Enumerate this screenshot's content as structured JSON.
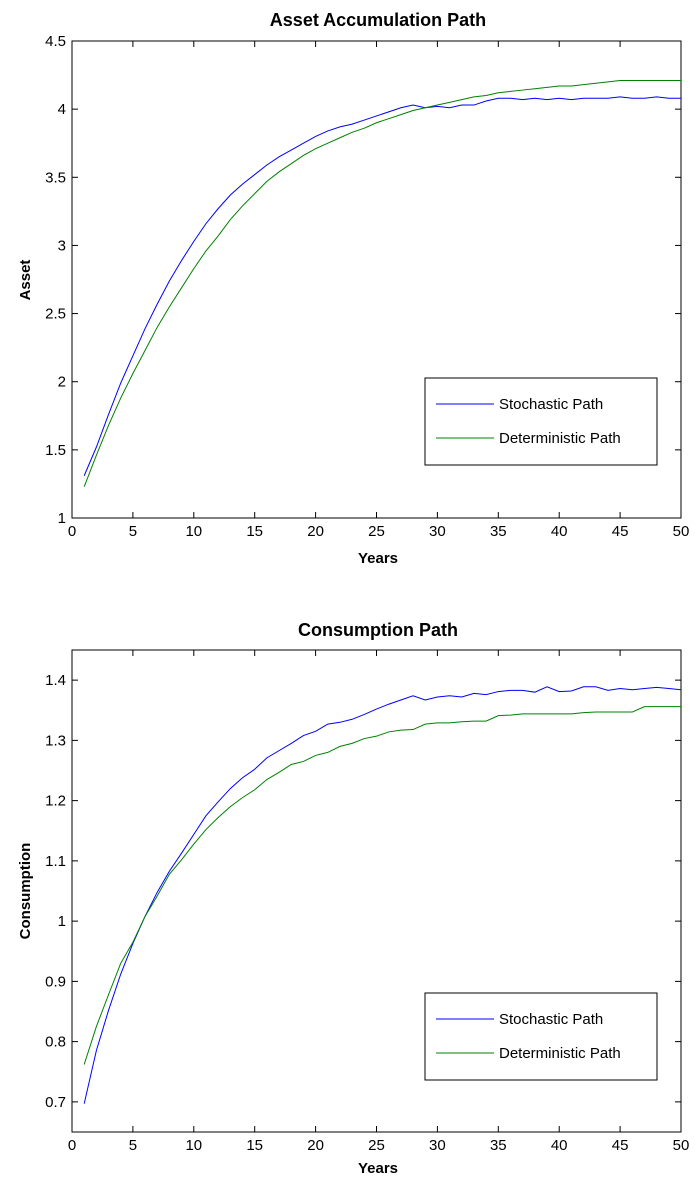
{
  "chart_data": [
    {
      "type": "line",
      "title": "Asset Accumulation Path",
      "xlabel": "Years",
      "ylabel": "Asset",
      "xlim": [
        0,
        50
      ],
      "ylim": [
        1,
        4.5
      ],
      "xticks": [
        "0",
        "5",
        "10",
        "15",
        "20",
        "25",
        "30",
        "35",
        "40",
        "45",
        "50"
      ],
      "yticks": [
        "1",
        "1.5",
        "2",
        "2.5",
        "3",
        "3.5",
        "4",
        "4.5"
      ],
      "grid": false,
      "legend_position": "lower-right",
      "x": [
        1,
        2,
        3,
        4,
        5,
        6,
        7,
        8,
        9,
        10,
        11,
        12,
        13,
        14,
        15,
        16,
        17,
        18,
        19,
        20,
        21,
        22,
        23,
        24,
        25,
        26,
        27,
        28,
        29,
        30,
        31,
        32,
        33,
        34,
        35,
        36,
        37,
        38,
        39,
        40,
        41,
        42,
        43,
        44,
        45,
        46,
        47,
        48,
        49,
        50
      ],
      "series": [
        {
          "name": "Stochastic Path",
          "color": "#0000ff",
          "values": [
            1.31,
            1.52,
            1.76,
            1.99,
            2.19,
            2.39,
            2.57,
            2.74,
            2.89,
            3.03,
            3.16,
            3.27,
            3.37,
            3.45,
            3.52,
            3.59,
            3.65,
            3.7,
            3.75,
            3.8,
            3.84,
            3.87,
            3.89,
            3.92,
            3.95,
            3.98,
            4.01,
            4.03,
            4.01,
            4.02,
            4.01,
            4.03,
            4.03,
            4.06,
            4.08,
            4.08,
            4.07,
            4.08,
            4.07,
            4.08,
            4.07,
            4.08,
            4.08,
            4.08,
            4.09,
            4.08,
            4.08,
            4.09,
            4.08,
            4.08
          ]
        },
        {
          "name": "Deterministic Path",
          "color": "#008000",
          "values": [
            1.23,
            1.46,
            1.68,
            1.88,
            2.06,
            2.23,
            2.4,
            2.55,
            2.69,
            2.83,
            2.96,
            3.07,
            3.19,
            3.29,
            3.38,
            3.47,
            3.54,
            3.6,
            3.66,
            3.71,
            3.75,
            3.79,
            3.83,
            3.86,
            3.9,
            3.93,
            3.96,
            3.99,
            4.01,
            4.03,
            4.05,
            4.07,
            4.09,
            4.1,
            4.12,
            4.13,
            4.14,
            4.15,
            4.16,
            4.17,
            4.17,
            4.18,
            4.19,
            4.2,
            4.21,
            4.21,
            4.21,
            4.21,
            4.21,
            4.21
          ]
        }
      ]
    },
    {
      "type": "line",
      "title": "Consumption Path",
      "xlabel": "Years",
      "ylabel": "Consumption",
      "xlim": [
        0,
        50
      ],
      "ylim": [
        0.65,
        1.45
      ],
      "xticks": [
        "0",
        "5",
        "10",
        "15",
        "20",
        "25",
        "30",
        "35",
        "40",
        "45",
        "50"
      ],
      "yticks": [
        "0.7",
        "0.8",
        "0.9",
        "1",
        "1.1",
        "1.2",
        "1.3",
        "1.4"
      ],
      "grid": false,
      "legend_position": "lower-right",
      "x": [
        1,
        2,
        3,
        4,
        5,
        6,
        7,
        8,
        9,
        10,
        11,
        12,
        13,
        14,
        15,
        16,
        17,
        18,
        19,
        20,
        21,
        22,
        23,
        24,
        25,
        26,
        27,
        28,
        29,
        30,
        31,
        32,
        33,
        34,
        35,
        36,
        37,
        38,
        39,
        40,
        41,
        42,
        43,
        44,
        45,
        46,
        47,
        48,
        49,
        50
      ],
      "series": [
        {
          "name": "Stochastic Path",
          "color": "#0000ff",
          "values": [
            0.697,
            0.785,
            0.852,
            0.912,
            0.963,
            1.008,
            1.048,
            1.083,
            1.113,
            1.144,
            1.175,
            1.198,
            1.22,
            1.238,
            1.252,
            1.271,
            1.283,
            1.295,
            1.308,
            1.315,
            1.327,
            1.33,
            1.335,
            1.343,
            1.352,
            1.36,
            1.367,
            1.374,
            1.367,
            1.372,
            1.374,
            1.372,
            1.378,
            1.376,
            1.381,
            1.383,
            1.383,
            1.38,
            1.389,
            1.381,
            1.382,
            1.389,
            1.389,
            1.383,
            1.386,
            1.384,
            1.386,
            1.388,
            1.386,
            1.384
          ]
        },
        {
          "name": "Deterministic Path",
          "color": "#008000",
          "values": [
            0.762,
            0.825,
            0.878,
            0.93,
            0.965,
            1.008,
            1.042,
            1.078,
            1.102,
            1.128,
            1.152,
            1.172,
            1.19,
            1.205,
            1.218,
            1.235,
            1.247,
            1.26,
            1.265,
            1.275,
            1.28,
            1.29,
            1.295,
            1.303,
            1.307,
            1.314,
            1.317,
            1.318,
            1.327,
            1.329,
            1.329,
            1.331,
            1.332,
            1.332,
            1.341,
            1.342,
            1.344,
            1.344,
            1.344,
            1.344,
            1.344,
            1.346,
            1.347,
            1.347,
            1.347,
            1.347,
            1.356,
            1.356,
            1.356,
            1.356
          ]
        }
      ]
    }
  ]
}
